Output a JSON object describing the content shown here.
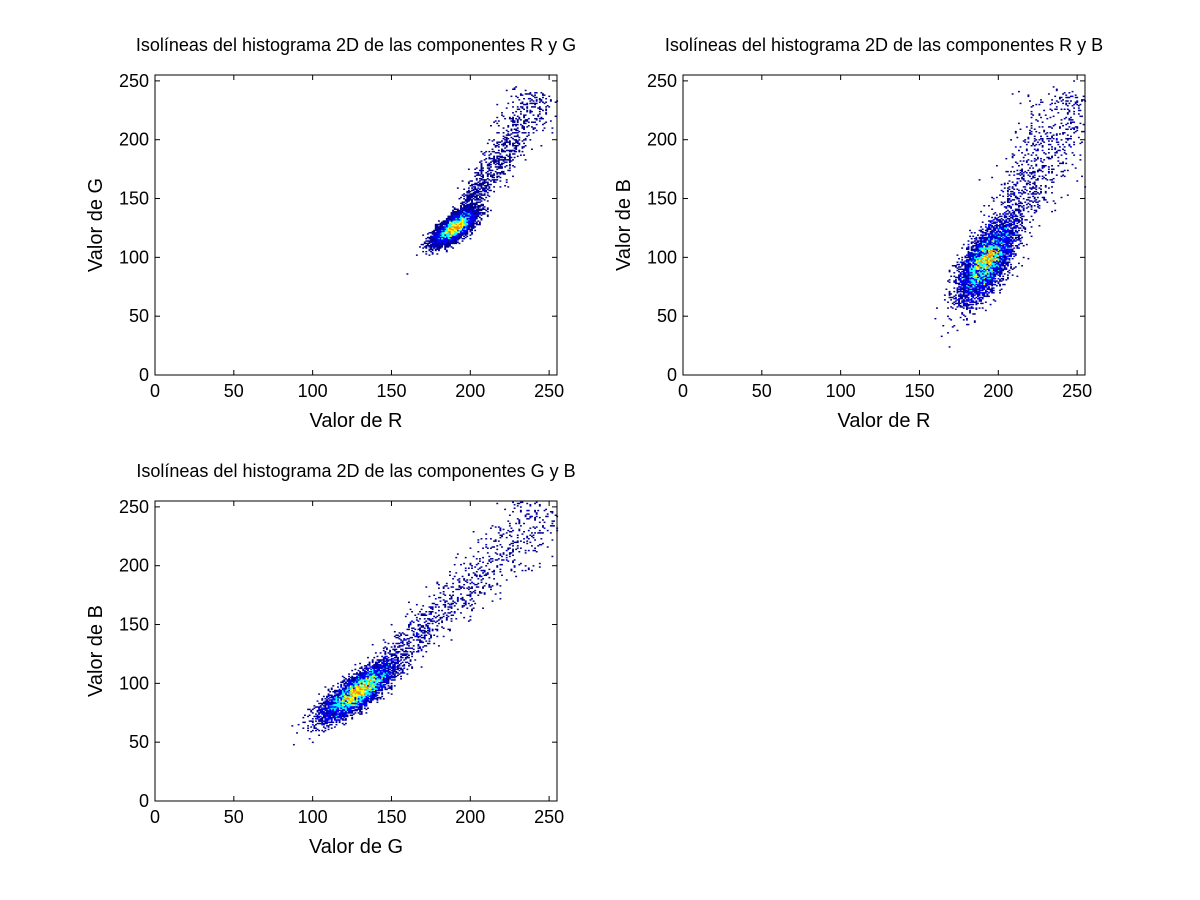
{
  "chart_data": [
    {
      "type": "heatmap",
      "id": "rg",
      "title": "Isolíneas del histograma 2D de las componentes R y G",
      "xlabel": "Valor de R",
      "ylabel": "Valor de G",
      "xlim": [
        0,
        255
      ],
      "ylim": [
        0,
        255
      ],
      "xticks": [
        0,
        50,
        100,
        150,
        200,
        250
      ],
      "yticks": [
        0,
        50,
        100,
        150,
        200,
        250
      ],
      "grid": false,
      "colormap": [
        "#00008f",
        "#0000ff",
        "#00ffff",
        "#ffff00",
        "#ff8000"
      ],
      "density": {
        "center": [
          190,
          125
        ],
        "std_major": 9,
        "std_minor": 3.5,
        "angle_deg": 47,
        "tail_to": [
          245,
          240
        ],
        "outliers": [
          [
            160,
            86
          ],
          [
            252,
            210
          ],
          [
            238,
            200
          ],
          [
            230,
            215
          ],
          [
            245,
            195
          ],
          [
            213,
            170
          ],
          [
            225,
            185
          ]
        ]
      }
    },
    {
      "type": "heatmap",
      "id": "rb",
      "title": "Isolíneas del histograma 2D de las componentes R y B",
      "xlabel": "Valor de R",
      "ylabel": "Valor de B",
      "xlim": [
        0,
        255
      ],
      "ylim": [
        0,
        255
      ],
      "xticks": [
        0,
        50,
        100,
        150,
        200,
        250
      ],
      "yticks": [
        0,
        50,
        100,
        150,
        200,
        250
      ],
      "grid": false,
      "colormap": [
        "#00008f",
        "#0000ff",
        "#00ffff",
        "#ffff00",
        "#ff8000"
      ],
      "density": {
        "center": [
          192,
          95
        ],
        "std_major": 17,
        "std_minor": 6,
        "angle_deg": 68,
        "tail_to": [
          250,
          240
        ],
        "outliers": [
          [
            160,
            48
          ],
          [
            175,
            60
          ],
          [
            248,
            250
          ],
          [
            240,
            180
          ],
          [
            255,
            160
          ],
          [
            235,
            245
          ]
        ]
      }
    },
    {
      "type": "heatmap",
      "id": "gb",
      "title": "Isolíneas del histograma 2D de las componentes G y B",
      "xlabel": "Valor de G",
      "ylabel": "Valor de B",
      "xlim": [
        0,
        255
      ],
      "ylim": [
        0,
        255
      ],
      "xticks": [
        0,
        50,
        100,
        150,
        200,
        250
      ],
      "yticks": [
        0,
        50,
        100,
        150,
        200,
        250
      ],
      "grid": false,
      "colormap": [
        "#00008f",
        "#0000ff",
        "#00ffff",
        "#ffff00",
        "#ff8000"
      ],
      "density": {
        "center": [
          128,
          92
        ],
        "std_major": 15,
        "std_minor": 5,
        "angle_deg": 45,
        "tail_to": [
          250,
          248
        ],
        "outliers": [
          [
            88,
            48
          ],
          [
            100,
            60
          ],
          [
            230,
            240
          ],
          [
            220,
            205
          ],
          [
            210,
            200
          ]
        ]
      }
    }
  ]
}
